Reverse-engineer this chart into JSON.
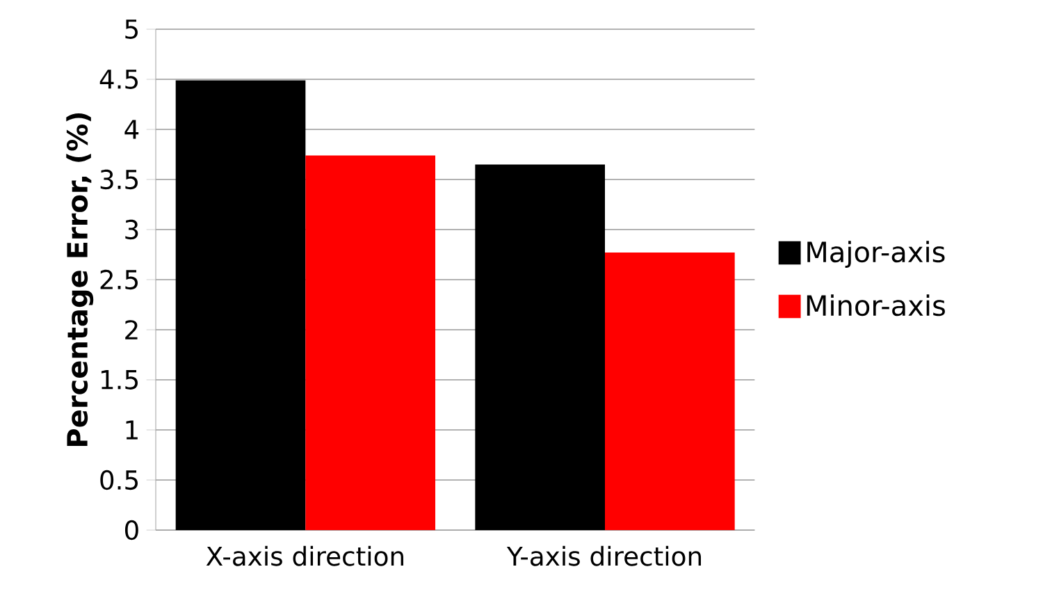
{
  "chart_data": {
    "type": "bar",
    "ylabel": "Percentage  Error, (%)",
    "categories": [
      "X-axis direction",
      "Y-axis direction"
    ],
    "series": [
      {
        "name": "Major-axis",
        "color": "#000000",
        "values": [
          4.49,
          3.65
        ]
      },
      {
        "name": "Minor-axis",
        "color": "#ff0000",
        "values": [
          3.74,
          2.77
        ]
      }
    ],
    "ylim": [
      0,
      5
    ],
    "yticks": [
      0,
      0.5,
      1,
      1.5,
      2,
      2.5,
      3,
      3.5,
      4,
      4.5,
      5
    ],
    "grid": "y",
    "legend": "right"
  }
}
